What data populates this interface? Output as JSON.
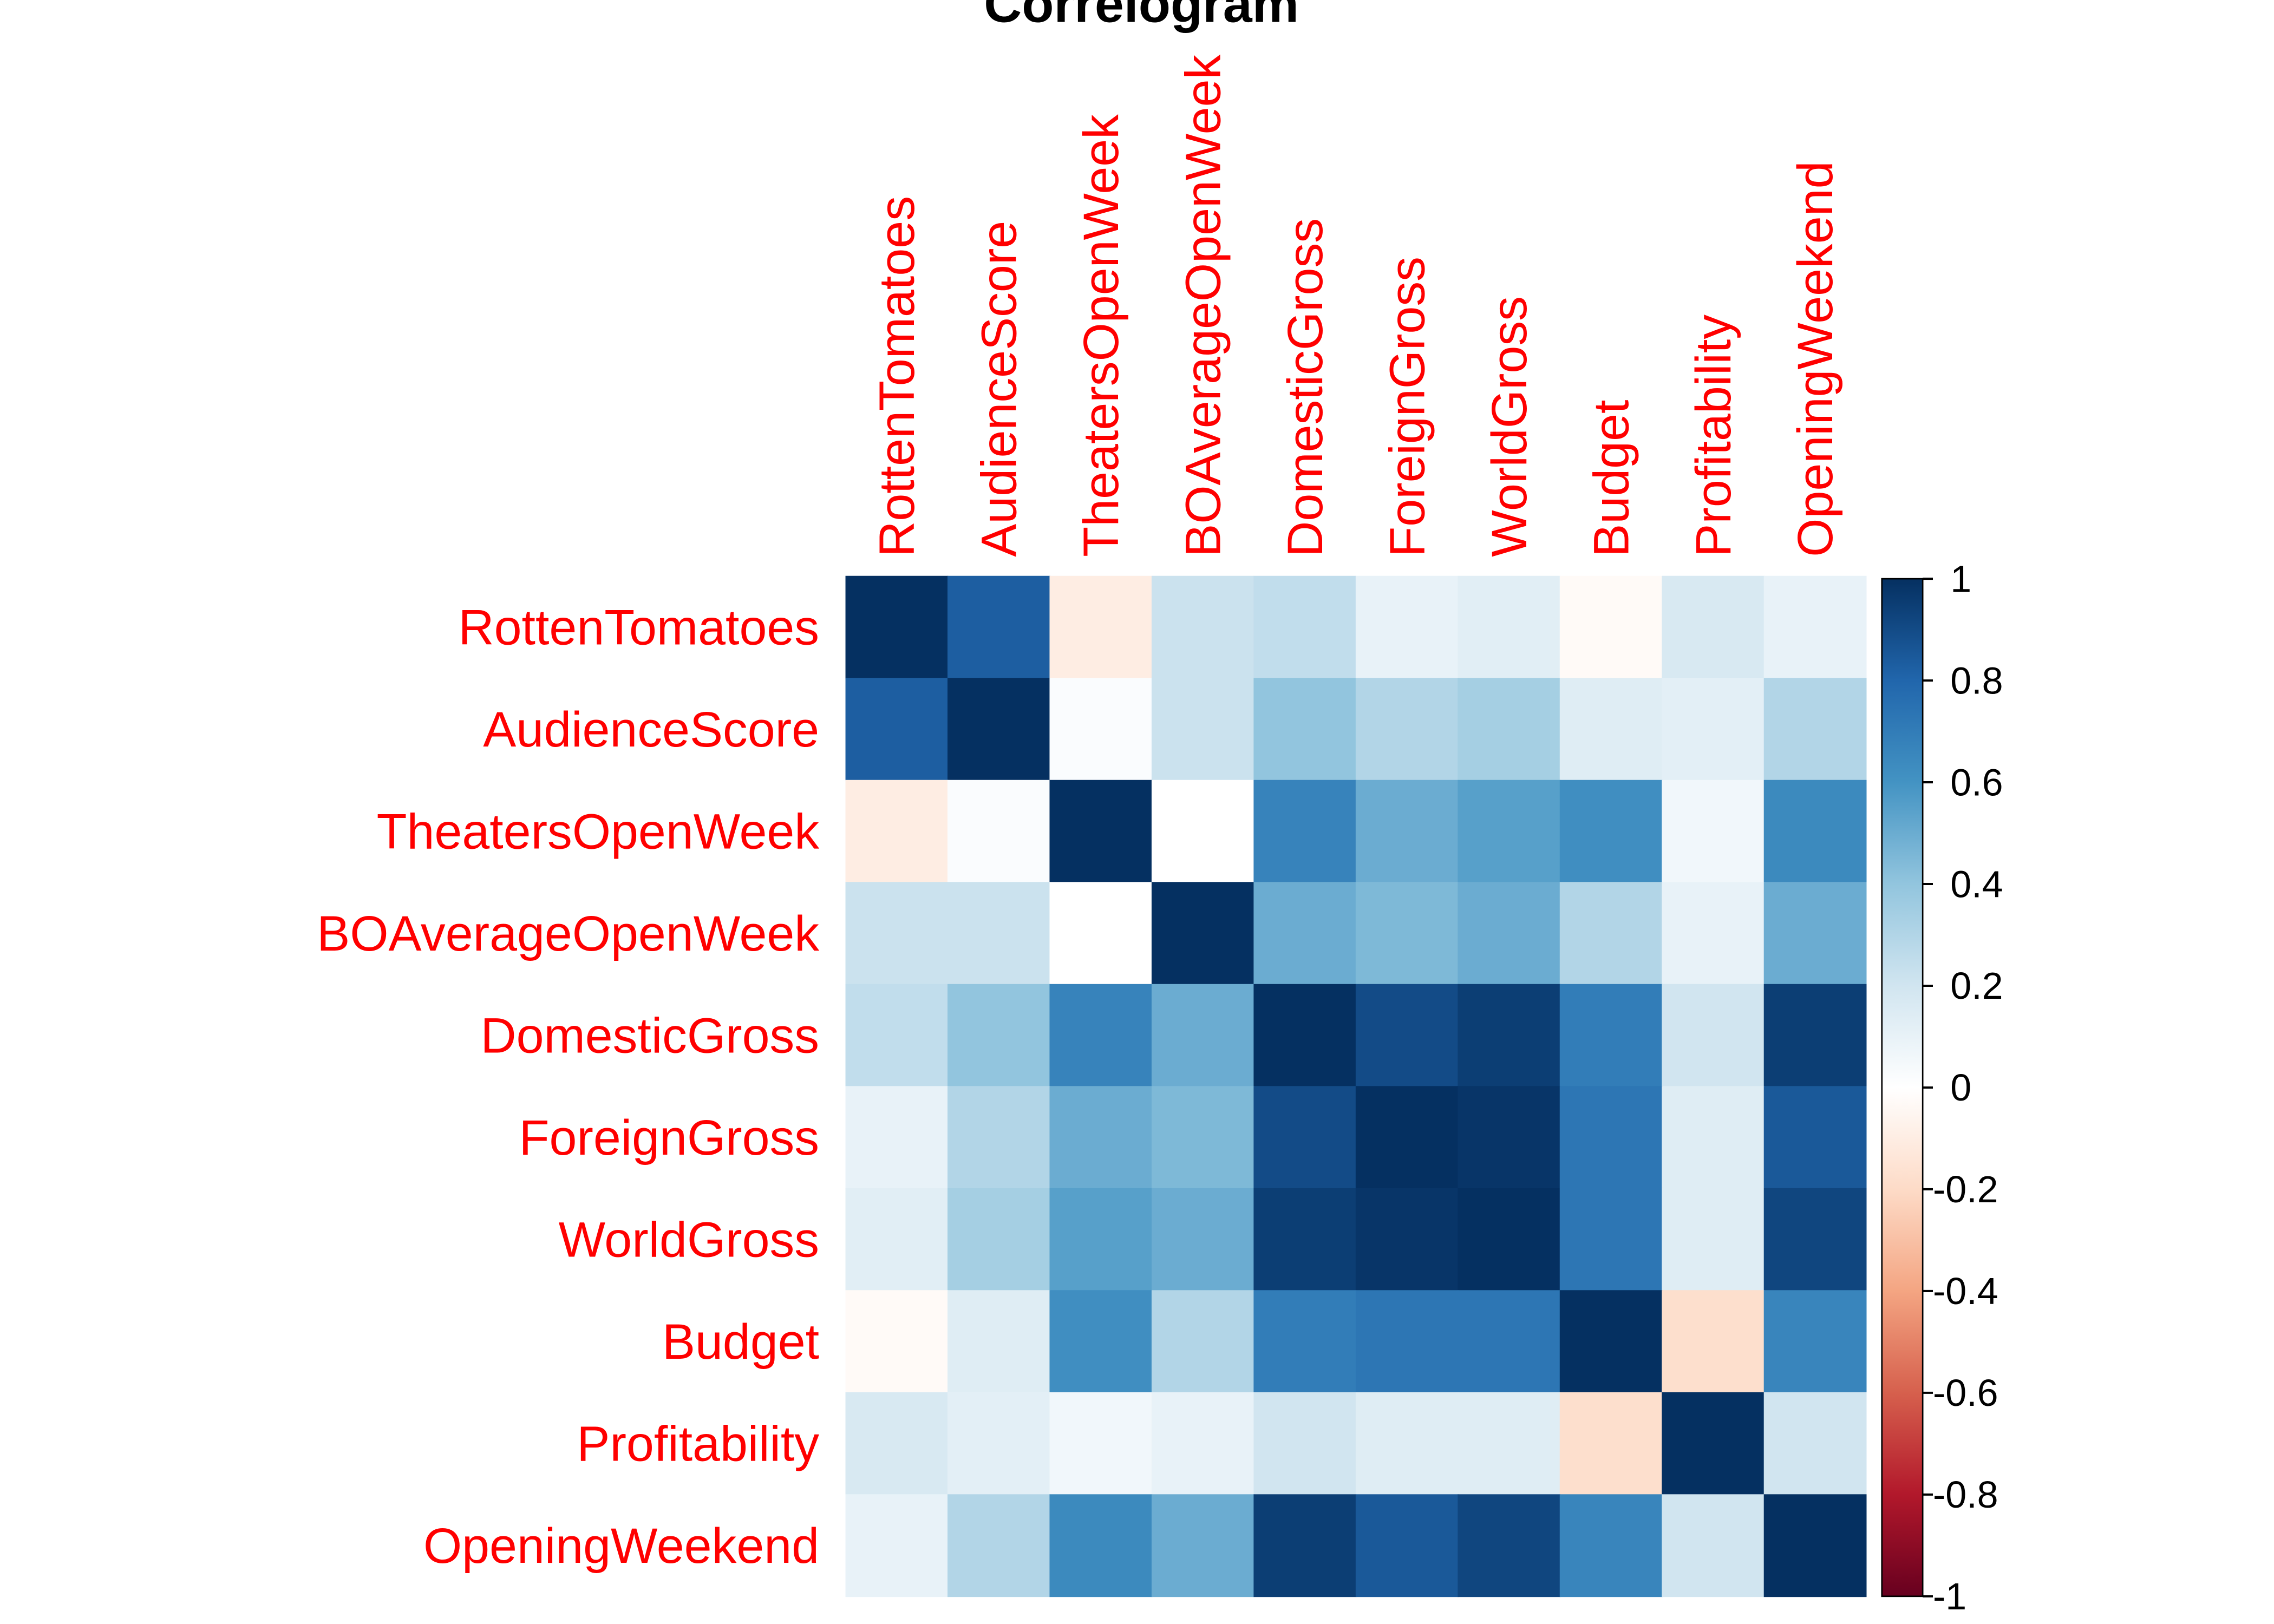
{
  "chart_data": {
    "type": "heatmap",
    "title": "Correlogram",
    "variables": [
      "RottenTomatoes",
      "AudienceScore",
      "TheatersOpenWeek",
      "BOAverageOpenWeek",
      "DomesticGross",
      "ForeignGross",
      "WorldGross",
      "Budget",
      "Profitability",
      "OpeningWeekend"
    ],
    "matrix": [
      [
        1.0,
        0.83,
        -0.1,
        0.22,
        0.25,
        0.1,
        0.13,
        -0.03,
        0.17,
        0.1
      ],
      [
        0.83,
        1.0,
        0.02,
        0.22,
        0.4,
        0.3,
        0.34,
        0.14,
        0.12,
        0.3
      ],
      [
        -0.1,
        0.02,
        1.0,
        0.0,
        0.67,
        0.5,
        0.55,
        0.62,
        0.06,
        0.64
      ],
      [
        0.22,
        0.22,
        0.0,
        1.0,
        0.5,
        0.45,
        0.5,
        0.3,
        0.1,
        0.5
      ],
      [
        0.25,
        0.4,
        0.67,
        0.5,
        1.0,
        0.9,
        0.95,
        0.7,
        0.2,
        0.95
      ],
      [
        0.1,
        0.3,
        0.5,
        0.45,
        0.9,
        1.0,
        0.98,
        0.73,
        0.14,
        0.85
      ],
      [
        0.13,
        0.34,
        0.55,
        0.5,
        0.95,
        0.98,
        1.0,
        0.73,
        0.14,
        0.92
      ],
      [
        -0.03,
        0.14,
        0.62,
        0.3,
        0.7,
        0.73,
        0.73,
        1.0,
        -0.18,
        0.66
      ],
      [
        0.17,
        0.12,
        0.06,
        0.1,
        0.2,
        0.14,
        0.14,
        -0.18,
        1.0,
        0.2
      ],
      [
        0.1,
        0.3,
        0.64,
        0.5,
        0.95,
        0.85,
        0.92,
        0.66,
        0.2,
        1.0
      ]
    ],
    "color_scale": {
      "range": [
        -1,
        1
      ],
      "ticks": [
        "1",
        "0.8",
        "0.6",
        "0.4",
        "0.2",
        "0",
        "-0.2",
        "-0.4",
        "-0.6",
        "-0.8",
        "-1"
      ],
      "palette": [
        "#67001F",
        "#B2182B",
        "#D6604D",
        "#F4A582",
        "#FDDBC7",
        "#FFFFFF",
        "#D1E5F0",
        "#92C5DE",
        "#4393C3",
        "#2166AC",
        "#053061"
      ]
    },
    "label_color": "#ff0000",
    "legend": "right"
  }
}
